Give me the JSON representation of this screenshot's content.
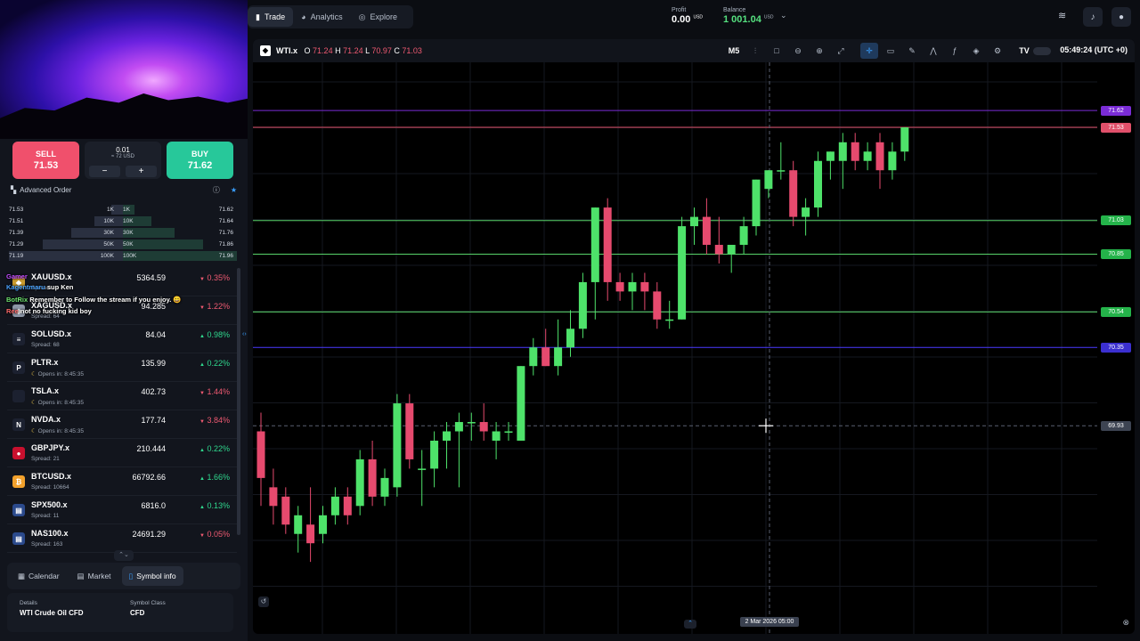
{
  "nav": {
    "tabs": [
      {
        "label": "Trade",
        "icon": "chart-icon"
      },
      {
        "label": "Analytics",
        "icon": "analytics-icon"
      },
      {
        "label": "Explore",
        "icon": "compass-icon"
      }
    ]
  },
  "account": {
    "profit_label": "Profit",
    "profit_value": "0.00",
    "profit_unit": "USD",
    "balance_label": "Balance",
    "balance_value": "1 001.04",
    "balance_unit": "USD"
  },
  "order": {
    "sell_label": "SELL",
    "sell_price": "71.53",
    "buy_label": "BUY",
    "buy_price": "71.62",
    "lot": "0.01",
    "lot_usd": "≈ 72 USD",
    "minus": "−",
    "plus": "+",
    "advanced_label": "Advanced Order"
  },
  "depth": [
    {
      "bid": "71.53",
      "bid_vol": "1K",
      "ask_vol": "1K",
      "ask": "71.62",
      "fill": 0.1
    },
    {
      "bid": "71.51",
      "bid_vol": "10K",
      "ask_vol": "10K",
      "ask": "71.64",
      "fill": 0.25
    },
    {
      "bid": "71.39",
      "bid_vol": "30K",
      "ask_vol": "30K",
      "ask": "71.76",
      "fill": 0.45
    },
    {
      "bid": "71.29",
      "bid_vol": "50K",
      "ask_vol": "50K",
      "ask": "71.86",
      "fill": 0.7
    },
    {
      "bid": "71.19",
      "bid_vol": "100K",
      "ask_vol": "100K",
      "ask": "71.96",
      "fill": 1.0
    }
  ],
  "watchlist": [
    {
      "symbol": "XAUUSD.x",
      "sub": "Spread: ",
      "price": "5364.59",
      "change": "0.35%",
      "dir": "down",
      "icon": "gold-icon",
      "color": "#c99a2e",
      "glyph": "◆"
    },
    {
      "symbol": "XAGUSD.x",
      "sub": "Spread: 64",
      "price": "94.285",
      "change": "1.22%",
      "dir": "down",
      "icon": "silver-icon",
      "color": "#8d96a6",
      "glyph": "◆"
    },
    {
      "symbol": "SOLUSD.x",
      "sub": "Spread: 68",
      "price": "84.04",
      "change": "0.98%",
      "dir": "up",
      "icon": "solana-icon",
      "color": "#1c2130",
      "glyph": "≡"
    },
    {
      "symbol": "PLTR.x",
      "sub": "Opens in: 8:45:35",
      "price": "135.99",
      "change": "0.22%",
      "dir": "up",
      "icon": "palantir-icon",
      "color": "#1c2130",
      "glyph": "P"
    },
    {
      "symbol": "TSLA.x",
      "sub": "Opens in: 8:45:35",
      "price": "402.73",
      "change": "1.44%",
      "dir": "down",
      "icon": "tesla-icon",
      "color": "#1c2130",
      "glyph": ""
    },
    {
      "symbol": "NVDA.x",
      "sub": "Opens in: 8:45:35",
      "price": "177.74",
      "change": "3.84%",
      "dir": "down",
      "icon": "nvidia-icon",
      "color": "#1c2130",
      "glyph": "N"
    },
    {
      "symbol": "GBPJPY.x",
      "sub": "Spread: 21",
      "price": "210.444",
      "change": "0.22%",
      "dir": "up",
      "icon": "flag-icon",
      "color": "#c8102e",
      "glyph": "●"
    },
    {
      "symbol": "BTCUSD.x",
      "sub": "Spread: 10664",
      "price": "66792.66",
      "change": "1.66%",
      "dir": "up",
      "icon": "bitcoin-icon",
      "color": "#f2a12c",
      "glyph": "₿"
    },
    {
      "symbol": "SPX500.x",
      "sub": "Spread: 11",
      "price": "6816.0",
      "change": "0.13%",
      "dir": "up",
      "icon": "us-flag-icon",
      "color": "#2b4a8c",
      "glyph": "▤"
    },
    {
      "symbol": "NAS100.x",
      "sub": "Spread: 163",
      "price": "24691.29",
      "change": "0.05%",
      "dir": "down",
      "icon": "us-flag-icon",
      "color": "#2b4a8c",
      "glyph": "▤"
    }
  ],
  "chat": [
    {
      "user": "Gamer",
      "text": "",
      "color": "#c04cff"
    },
    {
      "user": "Kagentmaru",
      "text": "sup Ken",
      "color": "#4aa3ff"
    },
    {
      "user": "BotRix",
      "text": "Remember to Follow the stream if you enjoy. 😀",
      "color": "#6fe36f"
    },
    {
      "user": "Ree",
      "text": "not no fucking kid boy",
      "color": "#ff6b6b"
    }
  ],
  "bottom_tabs": [
    {
      "label": "Calendar",
      "icon": "calendar-icon"
    },
    {
      "label": "Market",
      "icon": "market-icon"
    },
    {
      "label": "Symbol info",
      "icon": "info-icon"
    }
  ],
  "symbol_info": {
    "details_label": "Details",
    "details_value": "WTI Crude Oil CFD",
    "class_label": "Symbol Class",
    "class_value": "CFD"
  },
  "chart": {
    "symbol": "WTI.x",
    "o_label": "O",
    "o": "71.24",
    "h_label": "H",
    "h": "71.24",
    "l_label": "L",
    "l": "70.97",
    "c_label": "C",
    "c": "71.03",
    "timeframe": "M5",
    "clock": "05:49:24 (UTC +0)",
    "crosshair_date": "2 Mar 2026 05:00",
    "price_tags": [
      {
        "value": "71.62",
        "color": "#7a2cd6"
      },
      {
        "value": "71.53",
        "color": "#e0506a"
      },
      {
        "value": "71.03",
        "color": "#24b34a"
      },
      {
        "value": "70.85",
        "color": "#24b34a"
      },
      {
        "value": "70.54",
        "color": "#24b34a"
      },
      {
        "value": "70.35",
        "color": "#3b2fd0"
      },
      {
        "value": "69.93",
        "color": "#3d4452"
      }
    ],
    "hlines": [
      {
        "value": 71.62,
        "color": "#7a2cd6"
      },
      {
        "value": 71.53,
        "color": "#e0506a"
      },
      {
        "value": 71.03,
        "color": "#58d36a"
      },
      {
        "value": 70.85,
        "color": "#58d36a"
      },
      {
        "value": 70.54,
        "color": "#58d36a"
      },
      {
        "value": 70.35,
        "color": "#4a3bff"
      }
    ]
  },
  "chart_data": {
    "type": "candlestick",
    "ylim": [
      68.9,
      71.85
    ],
    "ohlc": [
      [
        69.9,
        70.0,
        69.5,
        69.65
      ],
      [
        69.6,
        69.7,
        69.4,
        69.5
      ],
      [
        69.55,
        69.6,
        69.35,
        69.4
      ],
      [
        69.35,
        69.5,
        69.25,
        69.45
      ],
      [
        69.4,
        69.6,
        69.2,
        69.3
      ],
      [
        69.35,
        69.5,
        69.3,
        69.45
      ],
      [
        69.45,
        69.6,
        69.4,
        69.55
      ],
      [
        69.55,
        69.6,
        69.4,
        69.45
      ],
      [
        69.5,
        69.8,
        69.45,
        69.75
      ],
      [
        69.75,
        69.85,
        69.5,
        69.55
      ],
      [
        69.55,
        69.7,
        69.5,
        69.65
      ],
      [
        69.6,
        70.1,
        69.55,
        70.05
      ],
      [
        70.05,
        70.1,
        69.7,
        69.75
      ],
      [
        69.7,
        69.8,
        69.5,
        69.7
      ],
      [
        69.7,
        69.9,
        69.6,
        69.85
      ],
      [
        69.85,
        69.95,
        69.7,
        69.9
      ],
      [
        69.9,
        70.0,
        69.6,
        69.95
      ],
      [
        69.95,
        70.0,
        69.85,
        69.95
      ],
      [
        69.95,
        70.05,
        69.85,
        69.9
      ],
      [
        69.85,
        69.95,
        69.75,
        69.9
      ],
      [
        69.9,
        69.95,
        69.85,
        69.9
      ],
      [
        69.85,
        70.25,
        69.85,
        70.25
      ],
      [
        70.25,
        70.4,
        70.2,
        70.35
      ],
      [
        70.35,
        70.45,
        70.25,
        70.25
      ],
      [
        70.25,
        70.5,
        70.2,
        70.35
      ],
      [
        70.35,
        70.55,
        70.3,
        70.45
      ],
      [
        70.45,
        70.75,
        70.4,
        70.7
      ],
      [
        70.7,
        71.1,
        70.5,
        71.1
      ],
      [
        71.1,
        71.15,
        70.6,
        70.7
      ],
      [
        70.7,
        70.75,
        70.6,
        70.65
      ],
      [
        70.65,
        70.75,
        70.55,
        70.7
      ],
      [
        70.7,
        70.75,
        70.55,
        70.65
      ],
      [
        70.65,
        70.7,
        70.45,
        70.5
      ],
      [
        70.5,
        70.6,
        70.45,
        70.5
      ],
      [
        70.5,
        71.05,
        70.5,
        71.0
      ],
      [
        71.0,
        71.1,
        70.9,
        71.05
      ],
      [
        71.05,
        71.15,
        70.85,
        70.9
      ],
      [
        70.9,
        71.05,
        70.8,
        70.85
      ],
      [
        70.85,
        70.9,
        70.75,
        70.9
      ],
      [
        70.9,
        71.05,
        70.85,
        71.0
      ],
      [
        71.0,
        71.25,
        70.95,
        71.25
      ],
      [
        71.2,
        71.3,
        71.15,
        71.3
      ],
      [
        71.3,
        71.45,
        71.25,
        71.3
      ],
      [
        71.3,
        71.35,
        71.0,
        71.05
      ],
      [
        71.05,
        71.15,
        70.95,
        71.1
      ],
      [
        71.1,
        71.4,
        71.05,
        71.35
      ],
      [
        71.35,
        71.4,
        71.25,
        71.4
      ],
      [
        71.35,
        71.5,
        71.2,
        71.45
      ],
      [
        71.45,
        71.5,
        71.3,
        71.35
      ],
      [
        71.35,
        71.45,
        71.3,
        71.4
      ],
      [
        71.45,
        71.5,
        71.2,
        71.3
      ],
      [
        71.3,
        71.45,
        71.25,
        71.4
      ],
      [
        71.4,
        71.53,
        71.35,
        71.53
      ]
    ]
  }
}
